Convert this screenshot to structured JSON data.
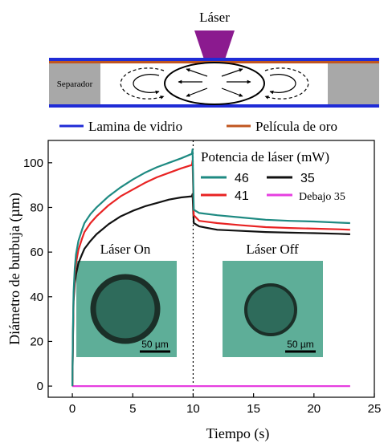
{
  "schematic": {
    "laser_label": "Láser",
    "separator_label": "Separador",
    "legend": [
      {
        "label": "Lamina de vidrio",
        "color": "#1f2bd6"
      },
      {
        "label": "Película de oro",
        "color": "#c0561f"
      }
    ],
    "colors": {
      "laser": "#8b1a8f",
      "separator": "#a8a8a8"
    }
  },
  "chart_data": {
    "type": "line",
    "xlabel": "Tiempo (s)",
    "ylabel": "Diámetro de burbuja (µm)",
    "xlim": [
      -2,
      25
    ],
    "ylim": [
      -5,
      110
    ],
    "xticks": [
      0,
      5,
      10,
      15,
      20,
      25
    ],
    "yticks": [
      0,
      20,
      40,
      60,
      80,
      100
    ],
    "legend_title": "Potencia de láser (mW)",
    "legend_position": "top-right",
    "laser_off_time": 10,
    "series": [
      {
        "name": "46",
        "color": "#1e8a82",
        "x": [
          0,
          0.05,
          0.1,
          0.2,
          0.3,
          0.5,
          0.8,
          1,
          1.5,
          2,
          3,
          4,
          5,
          6,
          7,
          8,
          9,
          9.9,
          9.95,
          10.05,
          10.5,
          12,
          14,
          16,
          18,
          20,
          22,
          23
        ],
        "y": [
          0,
          25,
          42,
          53,
          59,
          65,
          70,
          73,
          77,
          80,
          85,
          89,
          92.5,
          95.5,
          98,
          100,
          102,
          104,
          106,
          79,
          77.5,
          76.5,
          75.5,
          74.5,
          74,
          73.7,
          73.2,
          73
        ]
      },
      {
        "name": "41",
        "color": "#e82323",
        "x": [
          0,
          0.05,
          0.1,
          0.2,
          0.3,
          0.5,
          0.8,
          1,
          1.5,
          2,
          3,
          4,
          5,
          6,
          7,
          8,
          9,
          9.9,
          9.95,
          10.05,
          10.5,
          12,
          14,
          16,
          18,
          20,
          22,
          23
        ],
        "y": [
          0,
          22,
          40,
          50,
          55,
          61,
          66,
          69,
          73,
          76,
          81,
          85,
          88,
          91,
          93.5,
          95.5,
          97.5,
          99,
          101,
          76.5,
          74,
          73,
          72,
          71.2,
          70.8,
          70.5,
          70.2,
          70
        ]
      },
      {
        "name": "35",
        "color": "#111111",
        "x": [
          0,
          0.05,
          0.1,
          0.2,
          0.3,
          0.5,
          0.8,
          1,
          1.5,
          2,
          3,
          4,
          5,
          6,
          7,
          8,
          9,
          9.9,
          9.95,
          10.05,
          10.5,
          12,
          14,
          16,
          18,
          20,
          22,
          23
        ],
        "y": [
          0,
          20,
          38,
          46,
          50,
          55,
          59,
          61.5,
          65,
          68,
          72.5,
          76,
          78.5,
          80.5,
          82,
          83.5,
          84.5,
          85,
          86,
          73,
          71.5,
          70,
          69.5,
          69,
          68.7,
          68.5,
          68.2,
          68
        ]
      },
      {
        "name": "Debajo 35",
        "color": "#e63fe0",
        "x": [
          0,
          23
        ],
        "y": [
          0,
          0
        ]
      }
    ],
    "insets": [
      {
        "label": "Láser On",
        "scale_label": "50 µm",
        "panel_color": "#5eae98",
        "ring_color": "#1b2f28",
        "fill_color": "#2e6b5b"
      },
      {
        "label": "Láser Off",
        "scale_label": "50 µm",
        "panel_color": "#5eae98",
        "ring_color": "#1b2f28",
        "fill_color": "#2e6b5b"
      }
    ]
  }
}
